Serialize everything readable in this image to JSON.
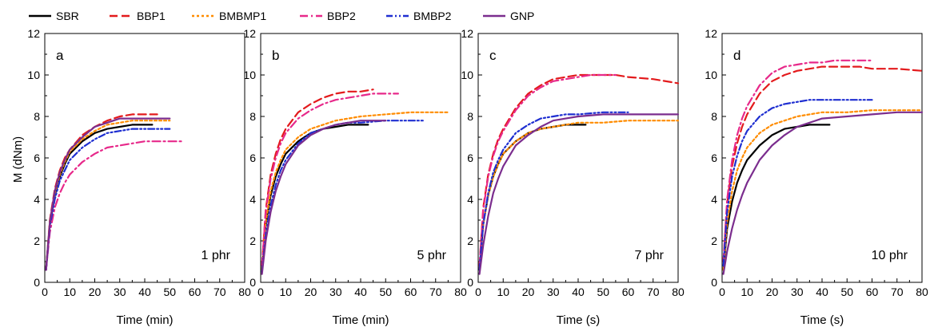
{
  "legend": [
    {
      "name": "SBR",
      "color": "#000000",
      "dash": "solid"
    },
    {
      "name": "BBP1",
      "color": "#e31a1c",
      "dash": "dash"
    },
    {
      "name": "BMBMP1",
      "color": "#ff8c00",
      "dash": "dot"
    },
    {
      "name": "BBP2",
      "color": "#e7298a",
      "dash": "dashdot"
    },
    {
      "name": "BMBP2",
      "color": "#1f2fd1",
      "dash": "dashdotdot"
    },
    {
      "name": "GNP",
      "color": "#7b2d8e",
      "dash": "solid"
    }
  ],
  "chart_data": [
    {
      "type": "line",
      "panel_label": "a",
      "annotation": "1 phr",
      "xlabel": "Time (min)",
      "ylabel": "M (dNm)",
      "xlim": [
        0,
        80
      ],
      "ylim": [
        0,
        12
      ],
      "xticks": [
        "0",
        "10",
        "20",
        "30",
        "40",
        "50",
        "60",
        "70",
        "80"
      ],
      "yticks": [
        "0",
        "2",
        "4",
        "6",
        "8",
        "10",
        "12"
      ],
      "series": [
        {
          "name": "SBR",
          "x": [
            0.5,
            2,
            4,
            6,
            8,
            10,
            15,
            20,
            25,
            30,
            35,
            40,
            43
          ],
          "y": [
            0.6,
            2.8,
            4.2,
            5.1,
            5.7,
            6.2,
            6.8,
            7.2,
            7.4,
            7.5,
            7.6,
            7.6,
            7.6
          ]
        },
        {
          "name": "BBP1",
          "x": [
            0.5,
            2,
            4,
            6,
            8,
            10,
            15,
            20,
            25,
            30,
            35,
            40,
            45
          ],
          "y": [
            0.6,
            3.0,
            4.5,
            5.4,
            6.0,
            6.4,
            7.1,
            7.5,
            7.8,
            8.0,
            8.1,
            8.1,
            8.1
          ]
        },
        {
          "name": "BMBMP1",
          "x": [
            0.5,
            2,
            4,
            6,
            8,
            10,
            15,
            20,
            25,
            30,
            35,
            40,
            45,
            50
          ],
          "y": [
            0.6,
            2.9,
            4.3,
            5.2,
            5.8,
            6.3,
            6.9,
            7.3,
            7.6,
            7.7,
            7.8,
            7.8,
            7.8,
            7.8
          ]
        },
        {
          "name": "BBP2",
          "x": [
            0.5,
            2,
            4,
            6,
            8,
            10,
            15,
            20,
            25,
            30,
            35,
            40,
            45,
            50,
            55
          ],
          "y": [
            0.6,
            2.4,
            3.6,
            4.3,
            4.8,
            5.2,
            5.8,
            6.2,
            6.5,
            6.6,
            6.7,
            6.8,
            6.8,
            6.8,
            6.8
          ]
        },
        {
          "name": "BMBP2",
          "x": [
            0.5,
            2,
            4,
            6,
            8,
            10,
            15,
            20,
            25,
            30,
            35,
            40,
            45,
            50
          ],
          "y": [
            0.6,
            2.7,
            4.0,
            4.9,
            5.4,
            5.9,
            6.5,
            6.9,
            7.2,
            7.3,
            7.4,
            7.4,
            7.4,
            7.4
          ]
        },
        {
          "name": "GNP",
          "x": [
            0.5,
            2,
            4,
            6,
            8,
            10,
            15,
            20,
            25,
            30,
            35,
            40,
            45,
            50
          ],
          "y": [
            0.6,
            2.9,
            4.4,
            5.3,
            5.9,
            6.4,
            7.0,
            7.5,
            7.7,
            7.9,
            7.9,
            7.9,
            7.9,
            7.9
          ]
        }
      ]
    },
    {
      "type": "line",
      "panel_label": "b",
      "annotation": "5 phr",
      "xlabel": "Time (min)",
      "ylabel": "",
      "xlim": [
        0,
        80
      ],
      "ylim": [
        0,
        12
      ],
      "xticks": [
        "0",
        "10",
        "20",
        "30",
        "40",
        "50",
        "60",
        "70",
        "80"
      ],
      "yticks": [
        "0",
        "2",
        "4",
        "6",
        "8",
        "10",
        "12"
      ],
      "series": [
        {
          "name": "SBR",
          "x": [
            0.5,
            2,
            4,
            6,
            8,
            10,
            15,
            20,
            25,
            30,
            35,
            40,
            43
          ],
          "y": [
            0.6,
            2.8,
            4.2,
            5.1,
            5.7,
            6.2,
            6.8,
            7.2,
            7.4,
            7.5,
            7.6,
            7.6,
            7.6
          ]
        },
        {
          "name": "BBP1",
          "x": [
            0.5,
            2,
            4,
            6,
            8,
            10,
            15,
            20,
            25,
            30,
            35,
            40,
            45
          ],
          "y": [
            0.8,
            3.5,
            5.2,
            6.2,
            6.9,
            7.4,
            8.2,
            8.6,
            8.9,
            9.1,
            9.2,
            9.2,
            9.3
          ]
        },
        {
          "name": "BMBMP1",
          "x": [
            0.5,
            2,
            4,
            6,
            8,
            10,
            15,
            20,
            25,
            30,
            35,
            40,
            50,
            60,
            70,
            75
          ],
          "y": [
            0.6,
            2.9,
            4.4,
            5.3,
            5.9,
            6.4,
            7.0,
            7.4,
            7.6,
            7.8,
            7.9,
            8.0,
            8.1,
            8.2,
            8.2,
            8.2
          ]
        },
        {
          "name": "BBP2",
          "x": [
            0.5,
            2,
            4,
            6,
            8,
            10,
            15,
            20,
            25,
            30,
            35,
            40,
            45,
            50,
            55
          ],
          "y": [
            0.8,
            3.4,
            5.0,
            6.0,
            6.7,
            7.2,
            7.9,
            8.3,
            8.6,
            8.8,
            8.9,
            9.0,
            9.1,
            9.1,
            9.1
          ]
        },
        {
          "name": "BMBP2",
          "x": [
            0.5,
            2,
            4,
            6,
            8,
            10,
            15,
            20,
            25,
            30,
            35,
            40,
            50,
            60,
            65
          ],
          "y": [
            0.5,
            2.3,
            3.7,
            4.7,
            5.4,
            5.9,
            6.7,
            7.2,
            7.4,
            7.6,
            7.7,
            7.7,
            7.8,
            7.8,
            7.8
          ]
        },
        {
          "name": "GNP",
          "x": [
            0.5,
            2,
            4,
            6,
            8,
            10,
            15,
            20,
            25,
            30,
            35,
            40,
            45,
            50
          ],
          "y": [
            0.4,
            2.0,
            3.4,
            4.4,
            5.1,
            5.7,
            6.6,
            7.1,
            7.4,
            7.6,
            7.7,
            7.8,
            7.8,
            7.8
          ]
        }
      ]
    },
    {
      "type": "line",
      "panel_label": "c",
      "annotation": "7 phr",
      "xlabel": "Time (s)",
      "ylabel": "",
      "xlim": [
        0,
        80
      ],
      "ylim": [
        0,
        12
      ],
      "xticks": [
        "0",
        "10",
        "20",
        "30",
        "40",
        "50",
        "60",
        "70",
        "80"
      ],
      "yticks": [
        "0",
        "2",
        "4",
        "6",
        "8",
        "10",
        "12"
      ],
      "series": [
        {
          "name": "SBR",
          "x": [
            0.5,
            2,
            4,
            6,
            8,
            10,
            15,
            20,
            25,
            30,
            35,
            40,
            43
          ],
          "y": [
            0.6,
            2.8,
            4.2,
            5.1,
            5.7,
            6.2,
            6.8,
            7.2,
            7.4,
            7.5,
            7.6,
            7.6,
            7.6
          ]
        },
        {
          "name": "BBP1",
          "x": [
            0.5,
            2,
            4,
            6,
            8,
            10,
            15,
            20,
            25,
            30,
            35,
            40,
            45,
            50,
            55,
            60,
            70,
            80
          ],
          "y": [
            0.8,
            3.6,
            5.2,
            6.2,
            6.9,
            7.4,
            8.4,
            9.1,
            9.5,
            9.8,
            9.9,
            10.0,
            10.0,
            10.0,
            10.0,
            9.9,
            9.8,
            9.6
          ]
        },
        {
          "name": "BMBMP1",
          "x": [
            0.5,
            2,
            4,
            6,
            8,
            10,
            15,
            20,
            25,
            30,
            35,
            40,
            50,
            60,
            70,
            80
          ],
          "y": [
            0.6,
            2.8,
            4.2,
            5.1,
            5.7,
            6.2,
            6.8,
            7.2,
            7.4,
            7.5,
            7.6,
            7.7,
            7.7,
            7.8,
            7.8,
            7.8
          ]
        },
        {
          "name": "BBP2",
          "x": [
            0.5,
            2,
            4,
            6,
            8,
            10,
            15,
            20,
            25,
            30,
            35,
            40,
            45,
            50,
            55
          ],
          "y": [
            0.8,
            3.5,
            5.1,
            6.1,
            6.8,
            7.3,
            8.3,
            9.0,
            9.4,
            9.7,
            9.8,
            9.9,
            10.0,
            10.0,
            10.0
          ]
        },
        {
          "name": "BMBP2",
          "x": [
            0.5,
            2,
            4,
            6,
            8,
            10,
            15,
            20,
            25,
            30,
            35,
            40,
            50,
            60
          ],
          "y": [
            0.6,
            2.8,
            4.3,
            5.3,
            5.9,
            6.4,
            7.2,
            7.6,
            7.9,
            8.0,
            8.1,
            8.1,
            8.2,
            8.2
          ]
        },
        {
          "name": "GNP",
          "x": [
            0.5,
            2,
            4,
            6,
            8,
            10,
            15,
            20,
            25,
            30,
            35,
            40,
            50,
            60,
            70,
            80
          ],
          "y": [
            0.4,
            1.8,
            3.2,
            4.3,
            5.0,
            5.6,
            6.6,
            7.1,
            7.5,
            7.8,
            7.9,
            8.0,
            8.1,
            8.1,
            8.1,
            8.1
          ]
        }
      ]
    },
    {
      "type": "line",
      "panel_label": "d",
      "annotation": "10 phr",
      "xlabel": "Time (s)",
      "ylabel": "",
      "xlim": [
        0,
        80
      ],
      "ylim": [
        0,
        12
      ],
      "xticks": [
        "0",
        "10",
        "20",
        "30",
        "40",
        "50",
        "60",
        "70",
        "80"
      ],
      "yticks": [
        "0",
        "2",
        "4",
        "6",
        "8",
        "10",
        "12"
      ],
      "series": [
        {
          "name": "SBR",
          "x": [
            0.5,
            2,
            4,
            6,
            8,
            10,
            15,
            20,
            25,
            30,
            35,
            40,
            43
          ],
          "y": [
            0.6,
            2.6,
            3.9,
            4.8,
            5.4,
            5.9,
            6.6,
            7.1,
            7.4,
            7.5,
            7.6,
            7.6,
            7.6
          ]
        },
        {
          "name": "BBP1",
          "x": [
            0.5,
            2,
            4,
            6,
            8,
            10,
            15,
            20,
            25,
            30,
            35,
            40,
            45,
            50,
            55,
            60,
            70,
            80
          ],
          "y": [
            1.0,
            3.8,
            5.6,
            6.7,
            7.5,
            8.1,
            9.1,
            9.7,
            10.0,
            10.2,
            10.3,
            10.4,
            10.4,
            10.4,
            10.4,
            10.3,
            10.3,
            10.2
          ]
        },
        {
          "name": "BMBMP1",
          "x": [
            0.5,
            2,
            4,
            6,
            8,
            10,
            15,
            20,
            25,
            30,
            35,
            40,
            50,
            60,
            70,
            80
          ],
          "y": [
            0.6,
            2.9,
            4.4,
            5.4,
            6.0,
            6.5,
            7.2,
            7.6,
            7.8,
            8.0,
            8.1,
            8.2,
            8.2,
            8.3,
            8.3,
            8.3
          ]
        },
        {
          "name": "BBP2",
          "x": [
            0.5,
            2,
            4,
            6,
            8,
            10,
            15,
            20,
            25,
            30,
            35,
            40,
            45,
            50,
            55,
            60
          ],
          "y": [
            1.0,
            4.0,
            5.9,
            7.1,
            7.9,
            8.5,
            9.5,
            10.1,
            10.4,
            10.5,
            10.6,
            10.6,
            10.7,
            10.7,
            10.7,
            10.7
          ]
        },
        {
          "name": "BMBP2",
          "x": [
            0.5,
            2,
            4,
            6,
            8,
            10,
            15,
            20,
            25,
            30,
            35,
            40,
            50,
            60
          ],
          "y": [
            0.8,
            3.4,
            5.1,
            6.1,
            6.8,
            7.3,
            8.0,
            8.4,
            8.6,
            8.7,
            8.8,
            8.8,
            8.8,
            8.8
          ]
        },
        {
          "name": "GNP",
          "x": [
            0.5,
            2,
            4,
            6,
            8,
            10,
            15,
            20,
            25,
            30,
            35,
            40,
            50,
            60,
            70,
            80
          ],
          "y": [
            0.4,
            1.5,
            2.6,
            3.5,
            4.2,
            4.8,
            5.9,
            6.6,
            7.1,
            7.5,
            7.7,
            7.9,
            8.0,
            8.1,
            8.2,
            8.2
          ]
        }
      ]
    }
  ]
}
